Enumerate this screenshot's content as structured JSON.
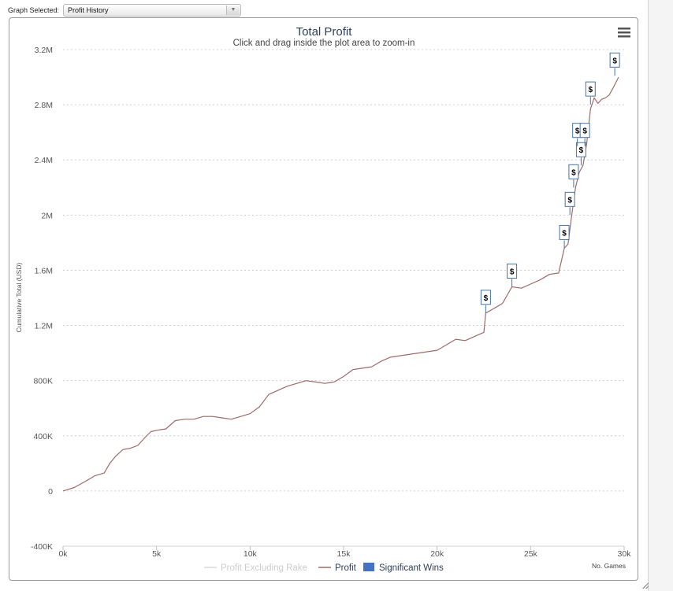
{
  "selector": {
    "label": "Graph Selected:",
    "value": "Profit History"
  },
  "colors": {
    "profit": "#9e6a6a",
    "excluding_rake": "#d8d8d8",
    "significant_wins": "#4572c4",
    "grid": "#d0d0d0",
    "flag_border": "#4572a7"
  },
  "chart_data": {
    "type": "line",
    "title": "Total Profit",
    "subtitle": "Click and drag inside the plot area to zoom-in",
    "xlabel": "No. Games",
    "ylabel": "Cumulative Total (USD)",
    "xlim": [
      0,
      30000
    ],
    "ylim": [
      -400000,
      3200000
    ],
    "xticks": [
      {
        "value": 0,
        "label": "0k"
      },
      {
        "value": 5000,
        "label": "5k"
      },
      {
        "value": 10000,
        "label": "10k"
      },
      {
        "value": 15000,
        "label": "15k"
      },
      {
        "value": 20000,
        "label": "20k"
      },
      {
        "value": 25000,
        "label": "25k"
      },
      {
        "value": 30000,
        "label": "30k"
      }
    ],
    "yticks": [
      {
        "value": -400000,
        "label": "-400K"
      },
      {
        "value": 0,
        "label": "0"
      },
      {
        "value": 400000,
        "label": "400K"
      },
      {
        "value": 800000,
        "label": "800K"
      },
      {
        "value": 1200000,
        "label": "1.2M"
      },
      {
        "value": 1600000,
        "label": "1.6M"
      },
      {
        "value": 2000000,
        "label": "2M"
      },
      {
        "value": 2400000,
        "label": "2.4M"
      },
      {
        "value": 2800000,
        "label": "2.8M"
      },
      {
        "value": 3200000,
        "label": "3.2M"
      }
    ],
    "grid": true,
    "legend_position": "bottom-center",
    "legend": [
      {
        "name": "Profit Excluding Rake",
        "symbol": "line",
        "color": "#d8d8d8",
        "text_color": "#cccccc"
      },
      {
        "name": "Profit",
        "symbol": "line",
        "color": "#9e6a6a",
        "text_color": "#2d3f57"
      },
      {
        "name": "Significant Wins",
        "symbol": "box",
        "color": "#4572c4",
        "text_color": "#2d3f57"
      }
    ],
    "series": [
      {
        "name": "Profit",
        "x": [
          0,
          600,
          1200,
          1700,
          2200,
          2500,
          2800,
          3200,
          3600,
          4000,
          4400,
          4700,
          5000,
          5500,
          6000,
          6500,
          7000,
          7500,
          8000,
          8500,
          9000,
          9500,
          10000,
          10500,
          11000,
          11500,
          12000,
          12500,
          13000,
          13500,
          14000,
          14500,
          15000,
          15500,
          16000,
          16500,
          17000,
          17500,
          18000,
          18500,
          19000,
          19500,
          20000,
          20500,
          21000,
          21500,
          22000,
          22500,
          22600,
          23000,
          23500,
          24000,
          24500,
          25000,
          25500,
          26000,
          26500,
          26800,
          27000,
          27200,
          27400,
          27600,
          27800,
          28000,
          28200,
          28400,
          28600,
          28800,
          29000,
          29200,
          29400,
          29700
        ],
        "values": [
          0,
          25000,
          70000,
          110000,
          130000,
          200000,
          250000,
          300000,
          310000,
          330000,
          390000,
          430000,
          440000,
          450000,
          510000,
          520000,
          520000,
          540000,
          540000,
          530000,
          520000,
          540000,
          560000,
          610000,
          700000,
          730000,
          760000,
          780000,
          800000,
          790000,
          780000,
          790000,
          830000,
          880000,
          890000,
          900000,
          940000,
          970000,
          980000,
          990000,
          1000000,
          1010000,
          1020000,
          1060000,
          1100000,
          1090000,
          1120000,
          1150000,
          1290000,
          1320000,
          1360000,
          1480000,
          1470000,
          1500000,
          1530000,
          1570000,
          1580000,
          1760000,
          1790000,
          2000000,
          2200000,
          2310000,
          2360000,
          2520000,
          2770000,
          2850000,
          2810000,
          2840000,
          2850000,
          2870000,
          2920000,
          3000000
        ]
      }
    ],
    "flags": [
      {
        "x": 22600,
        "y": 1290000,
        "label": "$"
      },
      {
        "x": 24000,
        "y": 1480000,
        "label": "$"
      },
      {
        "x": 26800,
        "y": 1760000,
        "label": "$"
      },
      {
        "x": 27100,
        "y": 2000000,
        "label": "$"
      },
      {
        "x": 27300,
        "y": 2200000,
        "label": "$"
      },
      {
        "x": 27700,
        "y": 2360000,
        "label": "$"
      },
      {
        "x": 27500,
        "y": 2500000,
        "label": "$"
      },
      {
        "x": 27900,
        "y": 2500000,
        "label": "$"
      },
      {
        "x": 28200,
        "y": 2800000,
        "label": "$"
      },
      {
        "x": 29500,
        "y": 3010000,
        "label": "$"
      }
    ]
  }
}
